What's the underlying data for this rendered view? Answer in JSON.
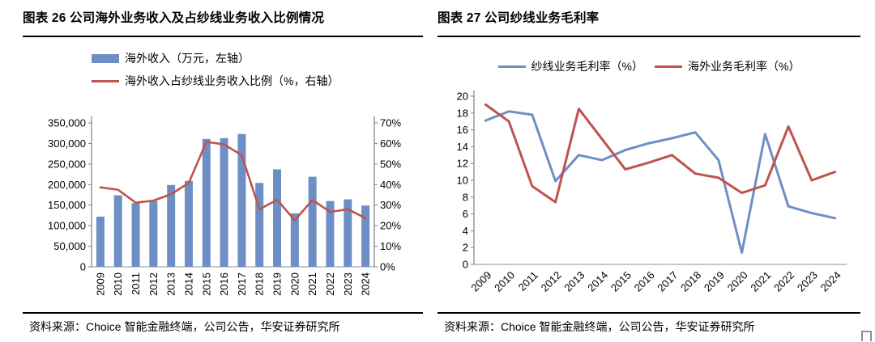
{
  "figures": [
    {
      "title": "图表 26 公司海外业务收入及占纱线业务收入比例情况",
      "source": "资料来源：Choice 智能金融终端，公司公告，华安证券研究所"
    },
    {
      "title": "图表 27 公司纱线业务毛利率",
      "source": "资料来源：Choice 智能金融终端，公司公告，华安证券研究所"
    }
  ],
  "chart_data": [
    {
      "type": "bar+line",
      "title": "图表 26 公司海外业务收入及占纱线业务收入比例情况",
      "categories": [
        "2009",
        "2010",
        "2011",
        "2012",
        "2013",
        "2014",
        "2015",
        "2016",
        "2017",
        "2018",
        "2019",
        "2020",
        "2021",
        "2022",
        "2023",
        "2024"
      ],
      "series": [
        {
          "name": "海外收入（万元，左轴）",
          "kind": "bar",
          "axis": "left",
          "color": "#6D8FC5",
          "values": [
            122000,
            174000,
            155000,
            160000,
            199000,
            209000,
            311000,
            313000,
            323000,
            204000,
            237000,
            130000,
            219000,
            160000,
            164000,
            149000
          ]
        },
        {
          "name": "海外收入占纱线业务收入比例（%，右轴）",
          "kind": "line",
          "axis": "right",
          "color": "#BE544F",
          "values": [
            38.6,
            37.5,
            31.2,
            32.2,
            35.3,
            40.8,
            60.8,
            59.5,
            54.3,
            28.0,
            32.6,
            22.6,
            32.5,
            26.7,
            28.0,
            23.7
          ]
        }
      ],
      "axes": [
        {
          "side": "left",
          "min": 0,
          "max": 350000,
          "ticks": [
            "0",
            "50,000",
            "100,000",
            "150,000",
            "200,000",
            "250,000",
            "300,000",
            "350,000"
          ]
        },
        {
          "side": "right",
          "min": 0,
          "max": 70,
          "ticks": [
            "0%",
            "10%",
            "20%",
            "30%",
            "40%",
            "50%",
            "60%",
            "70%"
          ]
        }
      ],
      "x_tick_rotation": -90,
      "legend_position": "top-left",
      "grid": false
    },
    {
      "type": "line",
      "title": "图表 27 公司纱线业务毛利率",
      "categories": [
        "2009",
        "2010",
        "2011",
        "2012",
        "2013",
        "2014",
        "2015",
        "2016",
        "2017",
        "2018",
        "2019",
        "2020",
        "2021",
        "2022",
        "2023",
        "2024"
      ],
      "series": [
        {
          "name": "纱线业务毛利率（%）",
          "kind": "line",
          "axis": "left",
          "color": "#6D8FC5",
          "values": [
            17.1,
            18.2,
            17.8,
            9.9,
            13.0,
            12.4,
            13.6,
            14.4,
            15.0,
            15.7,
            12.4,
            1.4,
            15.5,
            6.9,
            6.1,
            5.5
          ]
        },
        {
          "name": "海外业务毛利率（%）",
          "kind": "line",
          "axis": "left",
          "color": "#BE544F",
          "values": [
            19.0,
            17.0,
            9.3,
            7.4,
            18.5,
            14.9,
            11.3,
            12.1,
            13.0,
            10.8,
            10.3,
            8.5,
            9.4,
            16.4,
            10.0,
            11.0
          ]
        }
      ],
      "axes": [
        {
          "side": "left",
          "min": 0,
          "max": 20,
          "ticks": [
            "0",
            "2",
            "4",
            "6",
            "8",
            "10",
            "12",
            "14",
            "16",
            "18",
            "20"
          ]
        }
      ],
      "x_tick_rotation": -45,
      "legend_position": "top-center",
      "grid": false
    }
  ]
}
